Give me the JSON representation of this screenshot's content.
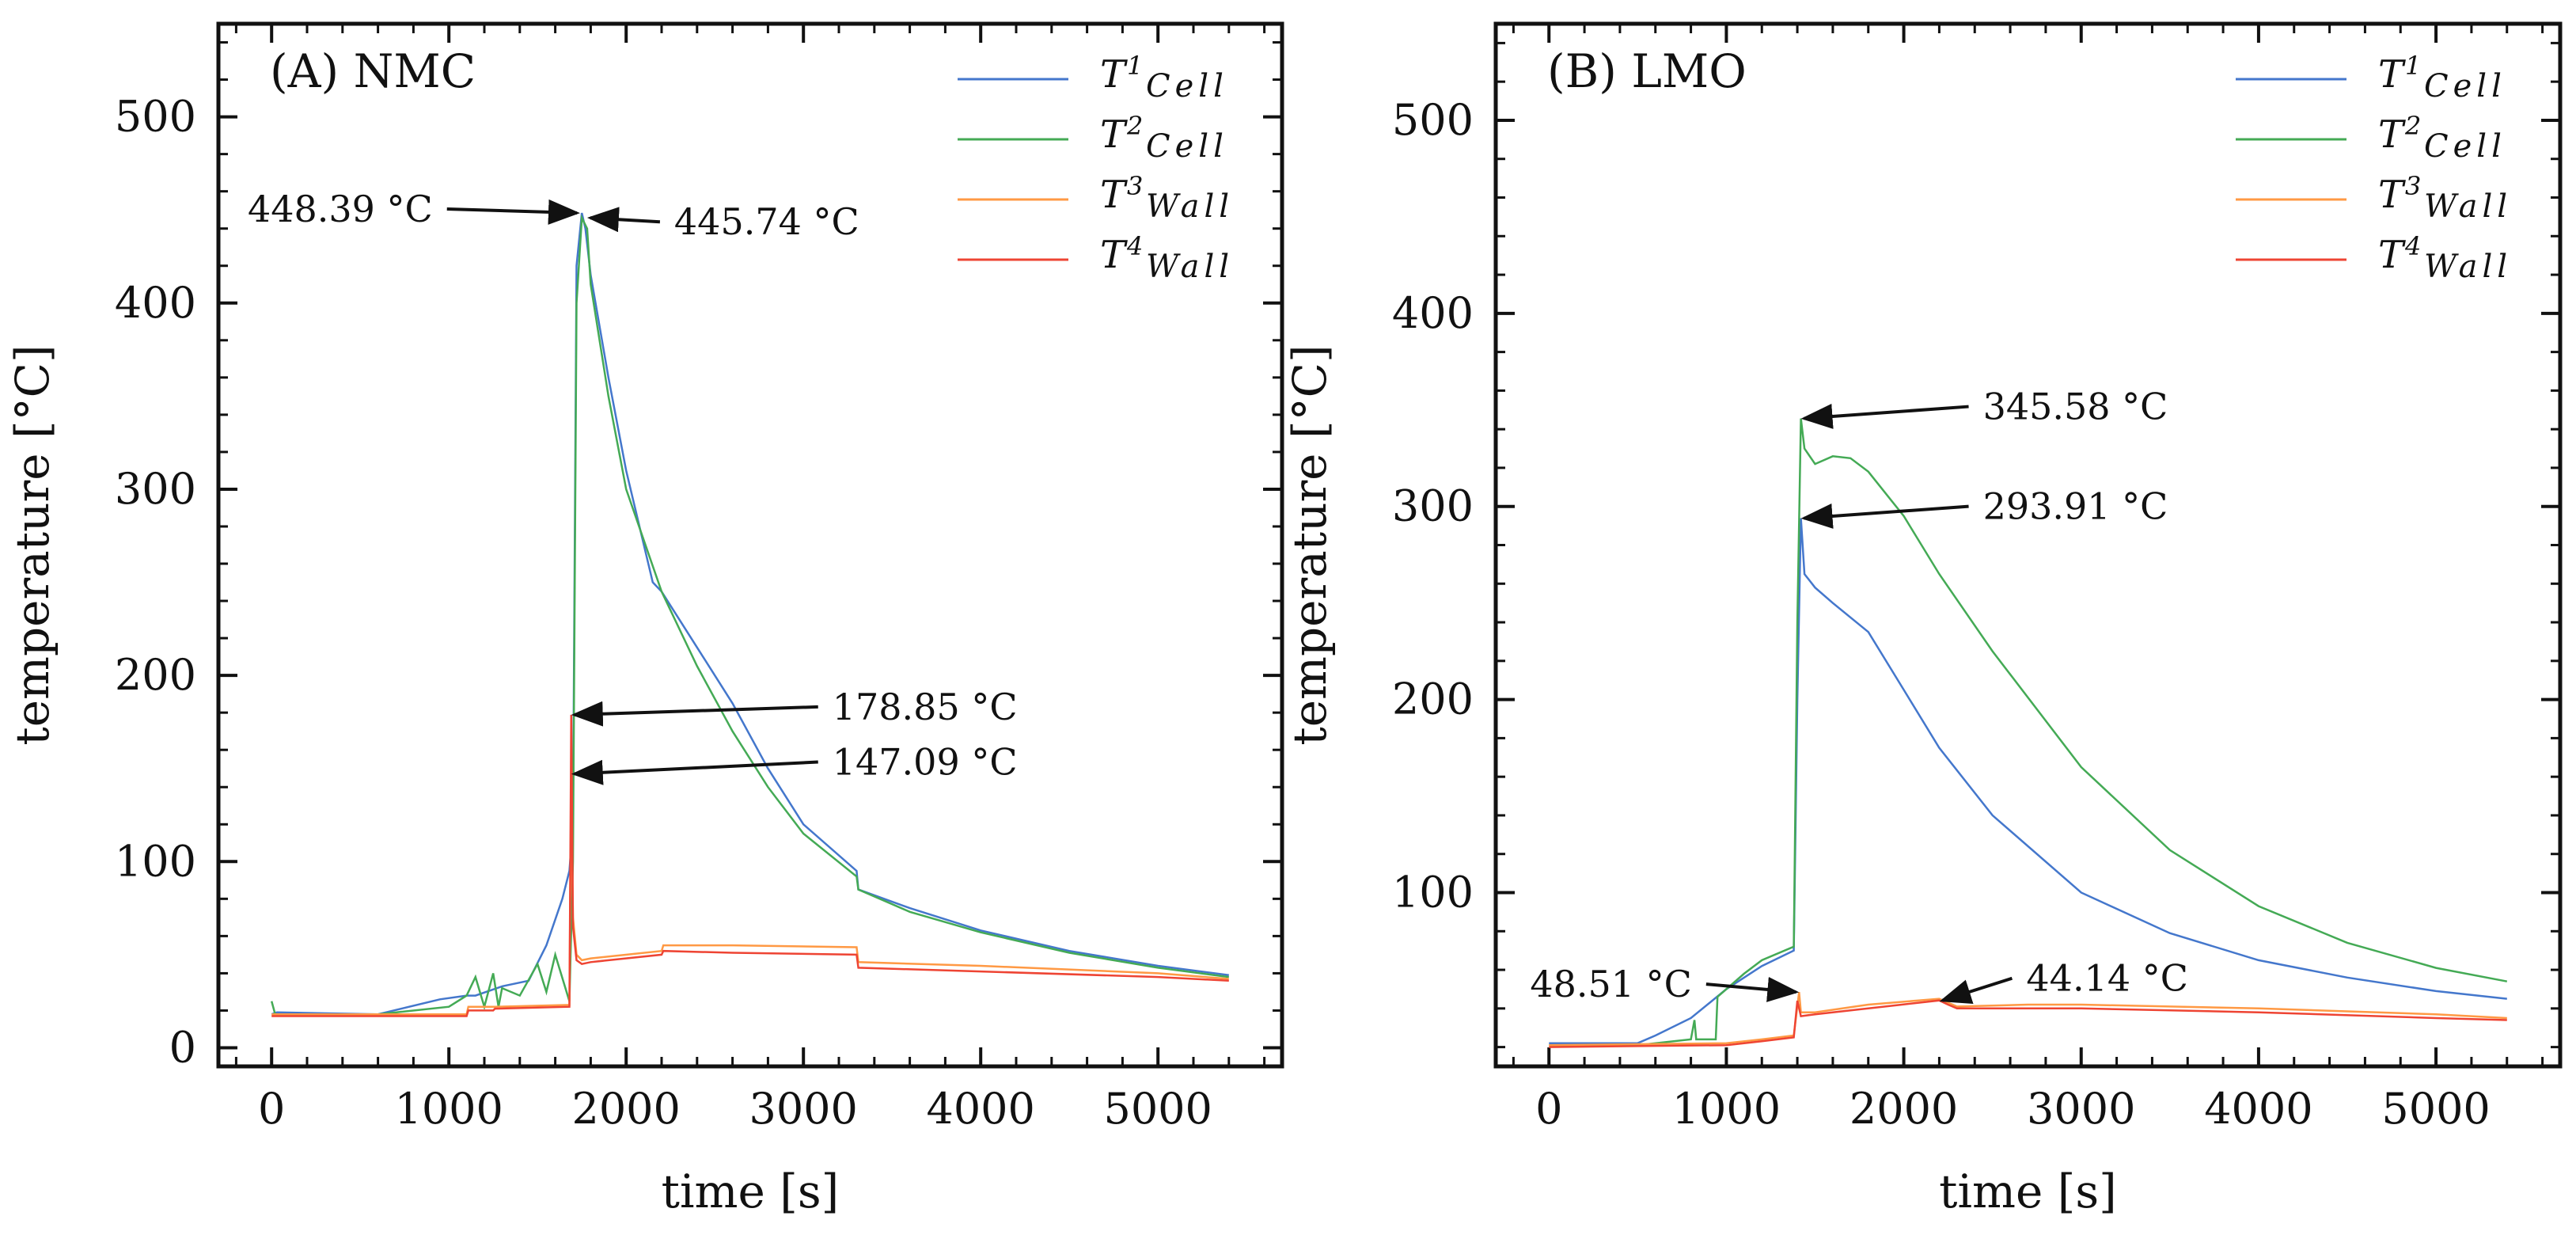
{
  "chart_data": [
    {
      "type": "line",
      "panel_title": "(A) NMC",
      "xlabel": "time [s]",
      "ylabel": "temperature [°C]",
      "xlim": [
        -300,
        5700
      ],
      "ylim": [
        -10,
        550
      ],
      "x_ticks": [
        0,
        1000,
        2000,
        3000,
        4000,
        5000
      ],
      "y_ticks": [
        0,
        100,
        200,
        300,
        400,
        500
      ],
      "x_tick_labels": [
        "0",
        "1000",
        "2000",
        "3000",
        "4000",
        "5000"
      ],
      "y_tick_labels": [
        "0",
        "100",
        "200",
        "300",
        "400",
        "500"
      ],
      "legend_position": "top-right",
      "series": [
        {
          "name": "T1",
          "label_base": "T",
          "label_sup": "1",
          "label_sub": "Cell",
          "color": "#4477cc",
          "x": [
            0,
            30,
            600,
            950,
            1100,
            1150,
            1300,
            1450,
            1550,
            1640,
            1680,
            1700,
            1720,
            1750,
            1770,
            1800,
            1900,
            2000,
            2100,
            2150,
            2200,
            2400,
            2600,
            2800,
            3000,
            3300,
            3310,
            3600,
            4000,
            4500,
            5000,
            5400
          ],
          "y": [
            18,
            19,
            18,
            26,
            28,
            28,
            33,
            36,
            55,
            80,
            95,
            120,
            420,
            448.39,
            440,
            415,
            360,
            310,
            270,
            250,
            245,
            215,
            185,
            150,
            120,
            95,
            85,
            75,
            63,
            52,
            44,
            39
          ]
        },
        {
          "name": "T2",
          "label_base": "T",
          "label_sup": "2",
          "label_sub": "Cell",
          "color": "#44aa55",
          "x": [
            0,
            20,
            40,
            600,
            1000,
            1100,
            1150,
            1200,
            1250,
            1280,
            1300,
            1400,
            1500,
            1550,
            1600,
            1680,
            1700,
            1720,
            1750,
            1780,
            1800,
            1900,
            2000,
            2200,
            2400,
            2600,
            2800,
            3000,
            3300,
            3310,
            3600,
            4000,
            4500,
            5000,
            5400
          ],
          "y": [
            25,
            18,
            18,
            18,
            22,
            28,
            38,
            22,
            40,
            22,
            32,
            28,
            45,
            30,
            50,
            25,
            100,
            400,
            445.74,
            440,
            410,
            350,
            300,
            245,
            205,
            170,
            140,
            115,
            92,
            85,
            73,
            62,
            51,
            43,
            38
          ]
        },
        {
          "name": "T3",
          "label_base": "T",
          "label_sup": "3",
          "label_sub": "Wall",
          "color": "#ff9944",
          "x": [
            0,
            1100,
            1110,
            1250,
            1260,
            1680,
            1690,
            1700,
            1720,
            1750,
            1800,
            2200,
            2210,
            2600,
            3300,
            3310,
            4000,
            5000,
            5400
          ],
          "y": [
            18,
            18,
            22,
            22,
            22,
            23,
            147.09,
            70,
            50,
            47,
            48,
            52,
            55,
            55,
            54,
            46,
            44,
            40,
            37
          ]
        },
        {
          "name": "T4",
          "label_base": "T",
          "label_sup": "4",
          "label_sub": "Wall",
          "color": "#ee4433",
          "x": [
            0,
            1100,
            1110,
            1250,
            1260,
            1680,
            1690,
            1700,
            1720,
            1750,
            1800,
            2200,
            2210,
            2600,
            3300,
            3310,
            4000,
            5000,
            5400
          ],
          "y": [
            17,
            17,
            20,
            20,
            21,
            22,
            178.85,
            65,
            47,
            45,
            46,
            50,
            52,
            51,
            50,
            43,
            41,
            38,
            36
          ]
        }
      ],
      "annotations": [
        {
          "text": "448.39 °C",
          "value_xy": [
            1740,
            448.39
          ],
          "text_side": "left"
        },
        {
          "text": "445.74 °C",
          "value_xy": [
            1780,
            445.74
          ],
          "text_side": "right"
        },
        {
          "text": "178.85 °C",
          "value_xy": [
            1690,
            178.85
          ],
          "text_side": "right"
        },
        {
          "text": "147.09 °C",
          "value_xy": [
            1690,
            147.09
          ],
          "text_side": "right"
        }
      ]
    },
    {
      "type": "line",
      "panel_title": "(B) LMO",
      "xlabel": "time [s]",
      "ylabel": "temperature [°C]",
      "xlim": [
        -300,
        5700
      ],
      "ylim": [
        10,
        550
      ],
      "x_ticks": [
        0,
        1000,
        2000,
        3000,
        4000,
        5000
      ],
      "y_ticks": [
        100,
        200,
        300,
        400,
        500
      ],
      "x_tick_labels": [
        "0",
        "1000",
        "2000",
        "3000",
        "4000",
        "5000"
      ],
      "y_tick_labels": [
        "100",
        "200",
        "300",
        "400",
        "500"
      ],
      "legend_position": "top-right",
      "series": [
        {
          "name": "T1",
          "label_base": "T",
          "label_sup": "1",
          "label_sub": "Cell",
          "color": "#4477cc",
          "x": [
            0,
            500,
            600,
            800,
            1000,
            1200,
            1380,
            1400,
            1420,
            1440,
            1500,
            1600,
            1800,
            2000,
            2200,
            2500,
            3000,
            3500,
            4000,
            4500,
            5000,
            5400
          ],
          "y": [
            22,
            22,
            26,
            35,
            50,
            62,
            70,
            200,
            293.91,
            265,
            258,
            250,
            235,
            205,
            175,
            140,
            100,
            79,
            65,
            56,
            49,
            45
          ]
        },
        {
          "name": "T2",
          "label_base": "T",
          "label_sup": "2",
          "label_sub": "Cell",
          "color": "#44aa55",
          "x": [
            0,
            500,
            800,
            820,
            830,
            940,
            950,
            1000,
            1100,
            1200,
            1380,
            1400,
            1420,
            1440,
            1500,
            1600,
            1700,
            1800,
            2000,
            2200,
            2500,
            3000,
            3500,
            4000,
            4500,
            5000,
            5400
          ],
          "y": [
            21,
            21,
            24,
            34,
            24,
            24,
            46,
            50,
            58,
            65,
            72,
            240,
            345.58,
            330,
            322,
            326,
            325,
            318,
            295,
            265,
            225,
            165,
            122,
            93,
            74,
            61,
            54
          ]
        },
        {
          "name": "T3",
          "label_base": "T",
          "label_sup": "3",
          "label_sub": "Wall",
          "color": "#ff9944",
          "x": [
            0,
            1000,
            1200,
            1380,
            1410,
            1420,
            1500,
            1800,
            2200,
            2250,
            2300,
            2700,
            3000,
            4000,
            5000,
            5400
          ],
          "y": [
            21,
            22,
            24,
            26,
            48.51,
            38,
            38,
            42,
            45,
            43,
            41,
            42,
            42,
            40,
            37,
            35
          ]
        },
        {
          "name": "T4",
          "label_base": "T",
          "label_sup": "4",
          "label_sub": "Wall",
          "color": "#ee4433",
          "x": [
            0,
            1000,
            1200,
            1380,
            1400,
            1420,
            1500,
            1800,
            2200,
            2250,
            2300,
            2700,
            3000,
            4000,
            5000,
            5400
          ],
          "y": [
            20,
            21,
            23,
            25,
            44,
            36,
            37,
            40,
            44.14,
            42,
            40,
            40,
            40,
            38,
            35,
            34
          ]
        }
      ],
      "annotations": [
        {
          "text": "345.58 °C",
          "value_xy": [
            1420,
            345.58
          ],
          "text_side": "right"
        },
        {
          "text": "293.91 °C",
          "value_xy": [
            1420,
            293.91
          ],
          "text_side": "right"
        },
        {
          "text": "48.51 °C",
          "value_xy": [
            1410,
            48.51
          ],
          "text_side": "left"
        },
        {
          "text": "44.14 °C",
          "value_xy": [
            2200,
            44.14
          ],
          "text_side": "right"
        }
      ]
    }
  ]
}
